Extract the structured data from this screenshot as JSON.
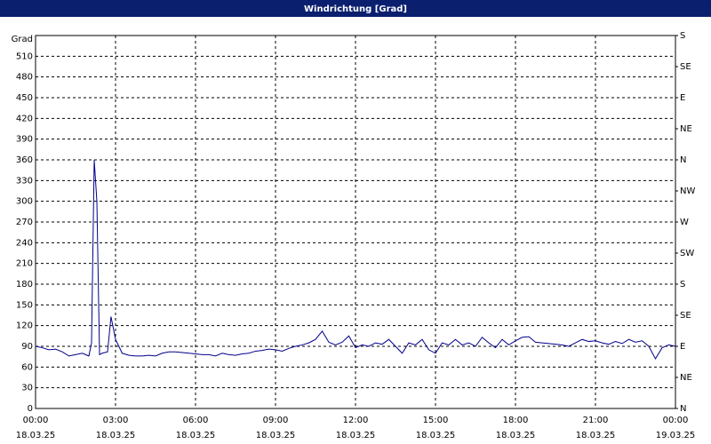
{
  "chart_data": {
    "type": "line",
    "title": "Windrichtung [Grad]",
    "y_label": "Grad",
    "x": [
      0,
      0.25,
      0.5,
      0.75,
      1,
      1.25,
      1.5,
      1.75,
      2,
      2.1,
      2.2,
      2.3,
      2.4,
      2.5,
      2.7,
      2.83,
      3,
      3.25,
      3.5,
      3.75,
      4,
      4.25,
      4.5,
      4.75,
      5,
      5.25,
      5.5,
      5.75,
      6,
      6.25,
      6.5,
      6.75,
      7,
      7.25,
      7.5,
      7.75,
      8,
      8.25,
      8.5,
      8.75,
      9,
      9.25,
      9.5,
      9.75,
      10,
      10.25,
      10.5,
      10.75,
      11,
      11.25,
      11.5,
      11.75,
      12,
      12.25,
      12.5,
      12.75,
      13,
      13.25,
      13.5,
      13.75,
      14,
      14.25,
      14.5,
      14.75,
      15,
      15.25,
      15.5,
      15.75,
      16,
      16.25,
      16.5,
      16.75,
      17,
      17.25,
      17.5,
      17.75,
      18,
      18.25,
      18.5,
      18.75,
      19,
      19.25,
      19.5,
      19.75,
      20,
      20.25,
      20.5,
      20.75,
      21,
      21.25,
      21.5,
      21.75,
      22,
      22.25,
      22.5,
      22.75,
      23,
      23.25,
      23.5,
      23.75,
      24
    ],
    "series": [
      {
        "color": "#00008b",
        "values": [
          90,
          88,
          85,
          86,
          82,
          76,
          78,
          80,
          76,
          95,
          360,
          300,
          78,
          80,
          82,
          133,
          100,
          80,
          77,
          76,
          76,
          77,
          76,
          80,
          82,
          82,
          81,
          80,
          79,
          78,
          78,
          76,
          80,
          78,
          77,
          79,
          80,
          83,
          84,
          86,
          85,
          83,
          87,
          90,
          92,
          95,
          100,
          112,
          96,
          92,
          96,
          105,
          88,
          92,
          90,
          95,
          93,
          100,
          90,
          80,
          95,
          92,
          100,
          85,
          80,
          95,
          92,
          100,
          92,
          95,
          90,
          103,
          95,
          88,
          100,
          92,
          98,
          103,
          104,
          96,
          95,
          94,
          93,
          92,
          90,
          95,
          100,
          97,
          98,
          95,
          93,
          97,
          94,
          100,
          96,
          98,
          90,
          72,
          88,
          92,
          90
        ]
      }
    ],
    "xlim": [
      0,
      24
    ],
    "xticks": [
      {
        "value": 0,
        "label": "00:00"
      },
      {
        "value": 3,
        "label": "03:00"
      },
      {
        "value": 6,
        "label": "06:00"
      },
      {
        "value": 9,
        "label": "09:00"
      },
      {
        "value": 12,
        "label": "12:00"
      },
      {
        "value": 15,
        "label": "15:00"
      },
      {
        "value": 18,
        "label": "18:00"
      },
      {
        "value": 21,
        "label": "21:00"
      },
      {
        "value": 24,
        "label": "00:00"
      }
    ],
    "xtick_dates": [
      "18.03.25",
      "18.03.25",
      "18.03.25",
      "18.03.25",
      "18.03.25",
      "18.03.25",
      "18.03.25",
      "18.03.25",
      "19.03.25"
    ],
    "ylim": [
      0,
      540
    ],
    "yticks": [
      0,
      30,
      60,
      90,
      120,
      150,
      180,
      210,
      240,
      270,
      300,
      330,
      360,
      390,
      420,
      450,
      480,
      510
    ],
    "y2lim": [
      0,
      540
    ],
    "y2ticks": [
      {
        "value": 0,
        "label": "N"
      },
      {
        "value": 45,
        "label": "NE"
      },
      {
        "value": 90,
        "label": "E"
      },
      {
        "value": 135,
        "label": "SE"
      },
      {
        "value": 180,
        "label": "S"
      },
      {
        "value": 225,
        "label": "SW"
      },
      {
        "value": 270,
        "label": "W"
      },
      {
        "value": 315,
        "label": "NW"
      },
      {
        "value": 360,
        "label": "N"
      },
      {
        "value": 405,
        "label": "NE"
      },
      {
        "value": 450,
        "label": "E"
      },
      {
        "value": 495,
        "label": "SE"
      },
      {
        "value": 540,
        "label": "S"
      }
    ],
    "grid": true
  }
}
